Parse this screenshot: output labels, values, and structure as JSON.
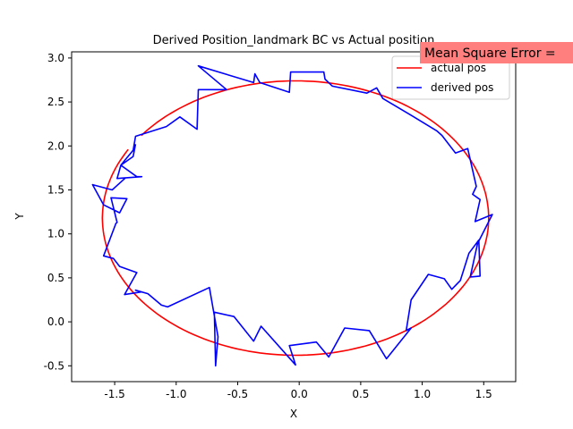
{
  "chart_data": {
    "type": "line",
    "title": "Derived Position_landmark BC vs Actual position",
    "xlabel": "X",
    "ylabel": "Y",
    "xlim": [
      -1.85,
      1.76
    ],
    "ylim": [
      -0.68,
      3.07
    ],
    "xticks": [
      "-1.5",
      "-1.0",
      "-0.5",
      "0.0",
      "0.5",
      "1.0",
      "1.5"
    ],
    "xtick_values": [
      -1.5,
      -1.0,
      -0.5,
      0.0,
      0.5,
      1.0,
      1.5
    ],
    "yticks": [
      "-0.5",
      "0.0",
      "0.5",
      "1.0",
      "1.5",
      "2.0",
      "2.5",
      "3.0"
    ],
    "ytick_values": [
      -0.5,
      0.0,
      0.5,
      1.0,
      1.5,
      2.0,
      2.5,
      3.0
    ],
    "grid": false,
    "legend_position": "top-right",
    "annotation": "Mean Square Error = ",
    "annotation_color": "#ff7f7f",
    "series": [
      {
        "name": "actual pos",
        "color": "#ff0000",
        "kind": "ellipse",
        "center": [
          -0.03,
          1.18
        ],
        "radii": [
          1.57,
          1.56
        ],
        "start_angle_deg": 150,
        "end_angle_deg": 503
      },
      {
        "name": "derived pos",
        "color": "#0000ff",
        "kind": "points",
        "x": [
          -1.33,
          -1.35,
          -1.45,
          -1.48,
          -1.28,
          -1.32,
          -1.45,
          -1.41,
          -1.35,
          -1.33,
          -1.08,
          -0.97,
          -0.83,
          -0.82,
          -0.59,
          -0.82,
          -0.37,
          -0.36,
          -0.32,
          -0.08,
          -0.07,
          0.2,
          0.21,
          0.27,
          0.55,
          0.63,
          0.68,
          0.92,
          1.12,
          1.16,
          1.27,
          1.37,
          1.44,
          1.41,
          1.47,
          1.43,
          1.57,
          1.45,
          1.39,
          1.47,
          1.46,
          1.38,
          1.31,
          1.24,
          1.18,
          1.05,
          0.91,
          0.87,
          0.91,
          0.71,
          0.57,
          0.37,
          0.24,
          0.14,
          -0.08,
          -0.03,
          -0.31,
          -0.37,
          -0.53,
          -0.69,
          -0.68,
          -0.66,
          -0.73,
          -1.07,
          -1.12,
          -1.23,
          -1.33,
          -1.28,
          -1.42,
          -1.32,
          -1.46,
          -1.51,
          -1.59,
          -1.49,
          -1.48,
          -1.53,
          -1.4,
          -1.46,
          -1.59,
          -1.68,
          -1.52,
          -1.41
        ],
        "y": [
          2.02,
          1.88,
          1.78,
          1.63,
          1.65,
          1.65,
          1.78,
          1.85,
          1.95,
          2.11,
          2.22,
          2.33,
          2.19,
          2.64,
          2.64,
          2.91,
          2.72,
          2.82,
          2.72,
          2.61,
          2.84,
          2.84,
          2.76,
          2.68,
          2.6,
          2.66,
          2.54,
          2.34,
          2.17,
          2.12,
          1.92,
          1.97,
          1.54,
          1.45,
          1.39,
          1.14,
          1.22,
          0.89,
          0.51,
          0.52,
          0.93,
          0.78,
          0.47,
          0.37,
          0.49,
          0.54,
          0.25,
          -0.1,
          -0.07,
          -0.42,
          -0.1,
          -0.07,
          -0.4,
          -0.23,
          -0.27,
          -0.49,
          -0.05,
          -0.22,
          0.06,
          0.11,
          -0.5,
          -0.17,
          0.39,
          0.17,
          0.19,
          0.32,
          0.36,
          0.34,
          0.31,
          0.56,
          0.63,
          0.72,
          0.75,
          1.12,
          1.13,
          1.41,
          1.4,
          1.24,
          1.33,
          1.56,
          1.5,
          1.64
        ]
      }
    ]
  }
}
